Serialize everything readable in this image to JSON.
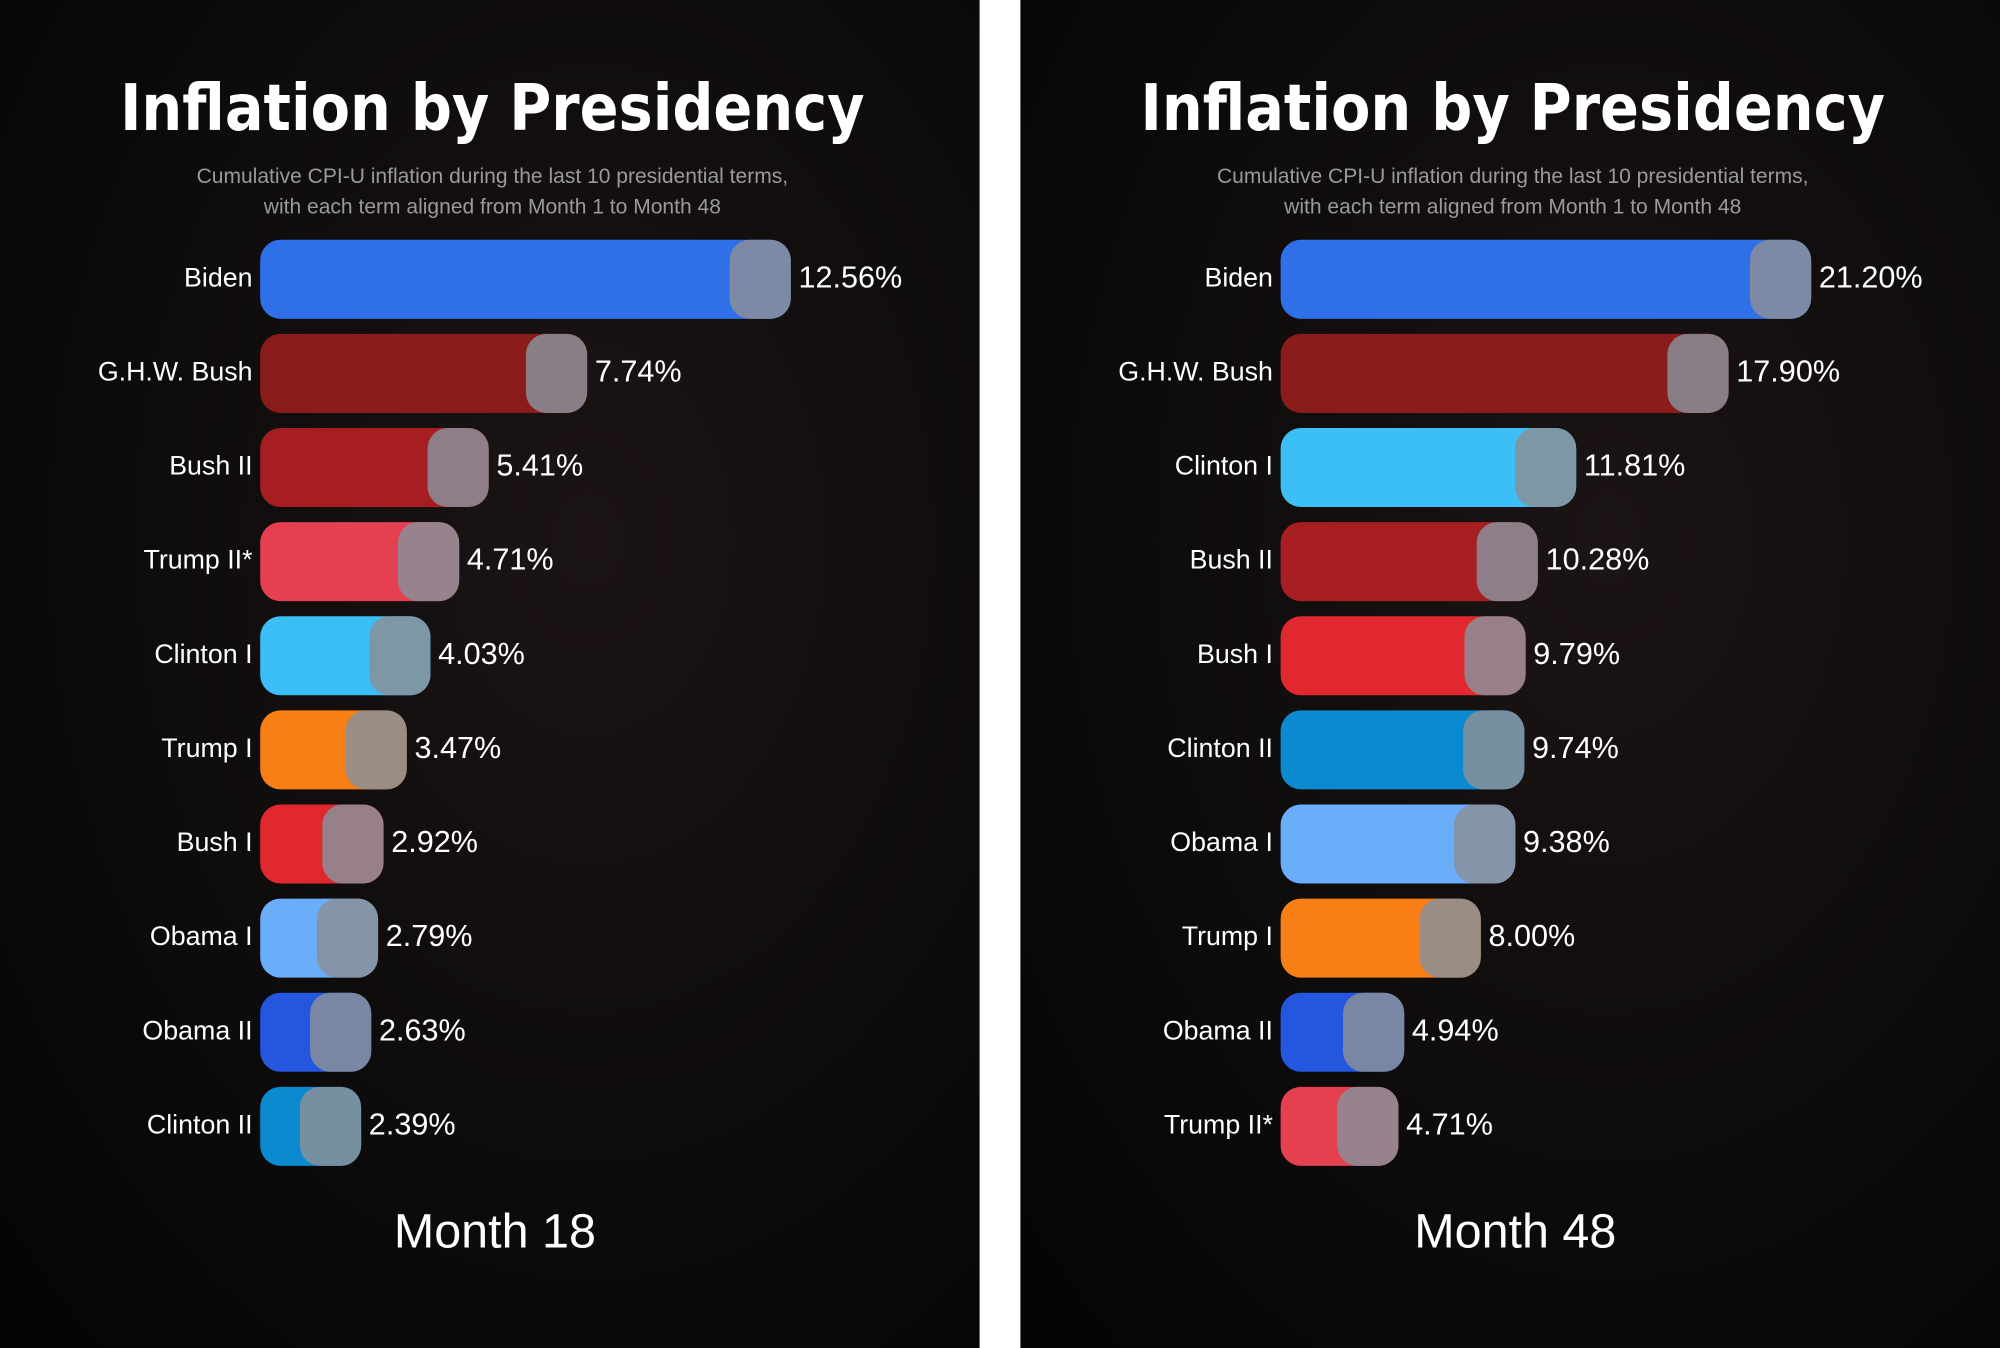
{
  "chart_data": [
    {
      "type": "hbar",
      "title": "Inflation by Presidency",
      "subtitle": [
        "Cumulative CPI-U inflation during the last 10 presidential terms,",
        "with each term aligned from Month 1 to Month 48"
      ],
      "categories": [
        "Biden",
        "G.H.W. Bush",
        "Bush II",
        "Trump II*",
        "Clinton I",
        "Trump I",
        "Bush I",
        "Obama I",
        "Obama II",
        "Clinton II"
      ],
      "values": [
        12.56,
        7.74,
        5.41,
        4.71,
        4.03,
        3.47,
        2.92,
        2.79,
        2.63,
        2.39
      ],
      "value_labels": [
        "12.56%",
        "7.74%",
        "5.41%",
        "4.71%",
        "4.03%",
        "3.47%",
        "2.92%",
        "2.79%",
        "2.63%",
        "2.39%"
      ],
      "colors": [
        "#2f6fe8",
        "#8b1c1c",
        "#a61e22",
        "#e5404f",
        "#3cbff7",
        "#f77f16",
        "#e0282e",
        "#6aaefa",
        "#2456e0",
        "#0b8ad0"
      ],
      "annotation": "Month 18"
    },
    {
      "type": "hbar",
      "title": "Inflation by Presidency",
      "subtitle": [
        "Cumulative CPI-U inflation during the last 10 presidential terms,",
        "with each term aligned from Month 1 to Month 48"
      ],
      "categories": [
        "Biden",
        "G.H.W. Bush",
        "Clinton I",
        "Bush II",
        "Bush I",
        "Clinton II",
        "Obama I",
        "Trump I",
        "Obama II",
        "Trump II*"
      ],
      "values": [
        21.2,
        17.9,
        11.81,
        10.28,
        9.79,
        9.74,
        9.38,
        8.0,
        4.94,
        4.71
      ],
      "value_labels": [
        "21.20%",
        "17.90%",
        "11.81%",
        "10.28%",
        "9.79%",
        "9.74%",
        "9.38%",
        "8.00%",
        "4.94%",
        "4.71%"
      ],
      "colors": [
        "#2f6fe8",
        "#8b1c1c",
        "#3cbff7",
        "#a61e22",
        "#e0282e",
        "#0b8ad0",
        "#6aaefa",
        "#f77f16",
        "#2456e0",
        "#e5404f"
      ],
      "annotation": "Month 48"
    }
  ]
}
